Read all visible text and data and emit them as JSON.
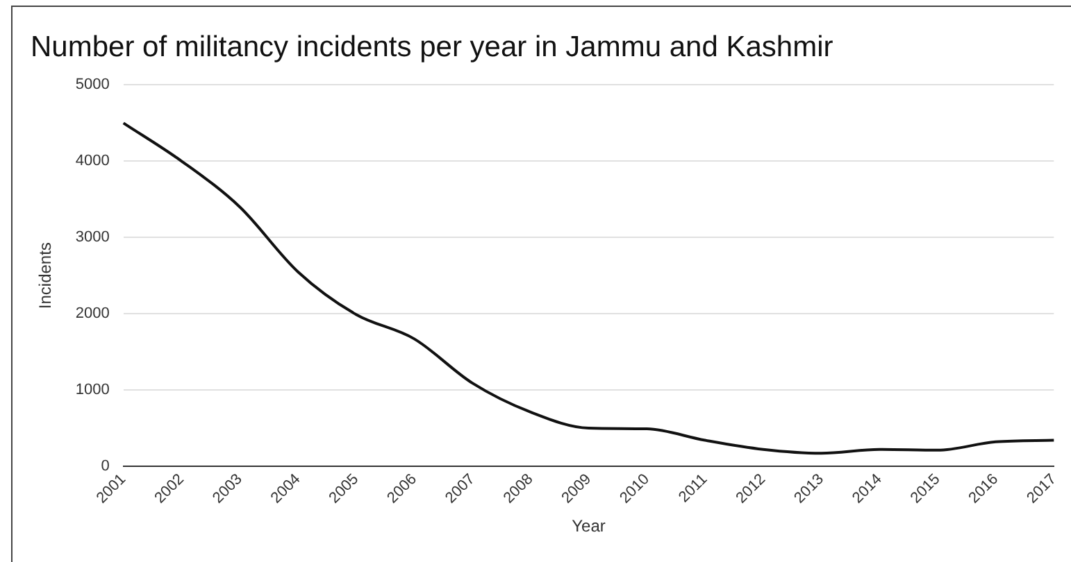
{
  "chart_data": {
    "type": "line",
    "title": "Number of militancy incidents per year in Jammu and Kashmir",
    "xlabel": "Year",
    "ylabel": "Incidents",
    "categories": [
      "2001",
      "2002",
      "2003",
      "2004",
      "2005",
      "2006",
      "2007",
      "2008",
      "2009",
      "2010",
      "2011",
      "2012",
      "2013",
      "2014",
      "2015",
      "2016",
      "2017"
    ],
    "series": [
      {
        "color": "#111111",
        "values": [
          4500,
          4000,
          3400,
          2550,
          1990,
          1670,
          1090,
          710,
          500,
          490,
          340,
          220,
          170,
          220,
          210,
          320,
          340
        ]
      }
    ],
    "ylim": [
      0,
      5000
    ],
    "yticks": [
      0,
      1000,
      2000,
      3000,
      4000,
      5000
    ],
    "grid": "y",
    "legend": false,
    "marker": "none",
    "line_style": "solid"
  }
}
